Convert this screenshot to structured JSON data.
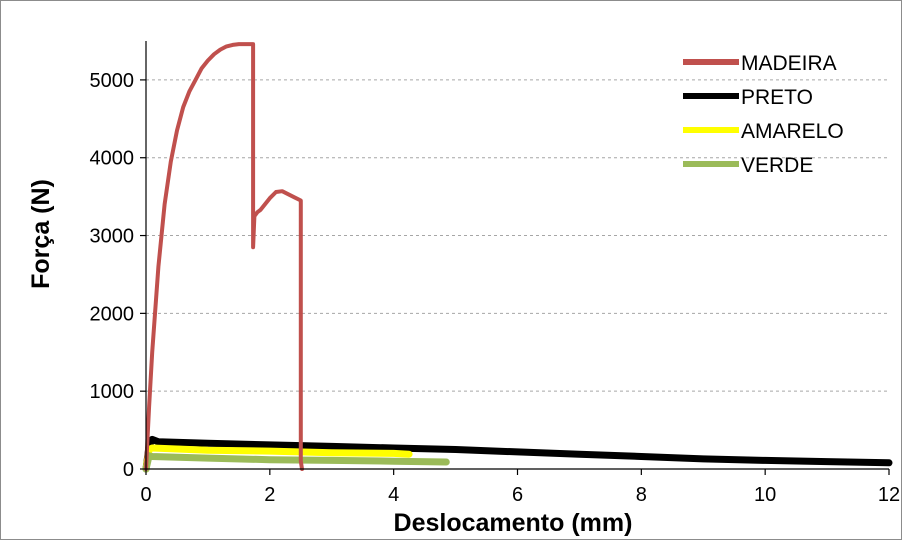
{
  "chart_data": {
    "type": "line",
    "title": "",
    "xlabel": "Deslocamento (mm)",
    "ylabel": "Força (N)",
    "xlim": [
      0,
      12
    ],
    "ylim": [
      0,
      5500
    ],
    "x_ticks": [
      0,
      2,
      4,
      6,
      8,
      10,
      12
    ],
    "y_ticks": [
      0,
      1000,
      2000,
      3000,
      4000,
      5000
    ],
    "x_tick_labels": [
      "0",
      "2",
      "4",
      "6",
      "8",
      "10",
      "12"
    ],
    "y_tick_labels": [
      "0",
      "1000",
      "2000",
      "3000",
      "4000",
      "5000"
    ],
    "grid": "horizontal-dashed",
    "legend_position": "top-right",
    "series": [
      {
        "name": "MADEIRA",
        "color": "#c0504d",
        "x": [
          0,
          0.05,
          0.1,
          0.2,
          0.3,
          0.4,
          0.5,
          0.6,
          0.7,
          0.8,
          0.9,
          1.0,
          1.1,
          1.2,
          1.3,
          1.4,
          1.5,
          1.6,
          1.73,
          1.73,
          1.75,
          1.8,
          1.85,
          1.9,
          2.0,
          2.1,
          2.2,
          2.3,
          2.4,
          2.5,
          2.5,
          2.52
        ],
        "y": [
          0,
          800,
          1500,
          2600,
          3400,
          3950,
          4350,
          4650,
          4850,
          5000,
          5150,
          5250,
          5330,
          5390,
          5430,
          5450,
          5460,
          5460,
          5460,
          2850,
          3250,
          3300,
          3330,
          3380,
          3480,
          3560,
          3570,
          3530,
          3490,
          3450,
          100,
          0
        ]
      },
      {
        "name": "PRETO",
        "color": "#000000",
        "x": [
          0,
          0.05,
          0.1,
          0.2,
          1,
          2,
          3,
          4,
          5,
          6,
          7,
          8,
          9,
          10,
          11,
          12
        ],
        "y": [
          0,
          300,
          380,
          350,
          330,
          310,
          290,
          270,
          250,
          220,
          190,
          160,
          130,
          110,
          95,
          80
        ]
      },
      {
        "name": "AMARELO",
        "color": "#ffff00",
        "x": [
          0,
          0.05,
          0.1,
          1,
          2,
          3,
          4,
          4.25
        ],
        "y": [
          0,
          250,
          270,
          240,
          230,
          210,
          200,
          190
        ]
      },
      {
        "name": "VERDE",
        "color": "#9bbb59",
        "x": [
          0,
          0.05,
          0.1,
          1,
          2,
          3,
          4,
          4.85
        ],
        "y": [
          0,
          170,
          160,
          140,
          120,
          110,
          100,
          90
        ]
      }
    ]
  }
}
